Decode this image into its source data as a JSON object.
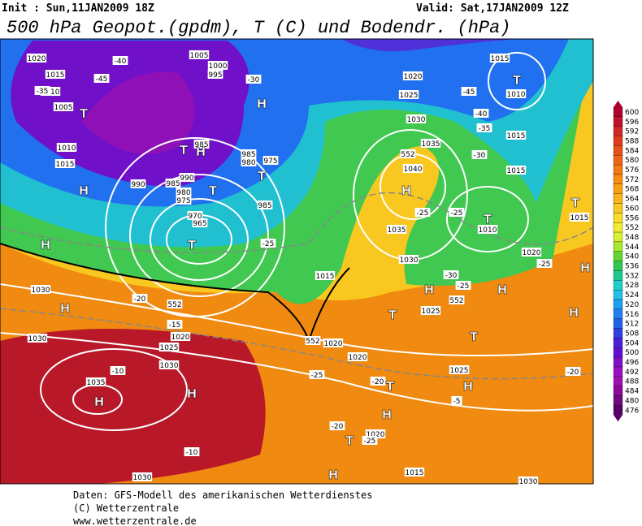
{
  "header": {
    "init": "Init : Sun,11JAN2009 18Z",
    "valid": "Valid: Sat,17JAN2009 12Z",
    "title": "500 hPa Geopot.(gpdm), T (C) und Bodendr. (hPa)"
  },
  "scale": {
    "values": [
      600,
      596,
      592,
      588,
      584,
      580,
      576,
      572,
      568,
      564,
      560,
      556,
      552,
      548,
      544,
      540,
      536,
      532,
      528,
      524,
      520,
      516,
      512,
      508,
      504,
      500,
      496,
      492,
      488,
      484,
      480,
      476
    ],
    "colors": [
      "#b00030",
      "#c0102c",
      "#d02828",
      "#e03c1c",
      "#e85018",
      "#ee6414",
      "#f27810",
      "#f68c10",
      "#f8a010",
      "#f8b418",
      "#f8c820",
      "#f8dc28",
      "#f0ec30",
      "#d8f030",
      "#a8e830",
      "#60d830",
      "#30c850",
      "#20c890",
      "#20d0c8",
      "#20c0e8",
      "#20a0f0",
      "#2080f0",
      "#2060e8",
      "#3040e0",
      "#4820d8",
      "#6010d0",
      "#8010c8",
      "#9810c0",
      "#a010b0",
      "#8c0898",
      "#700880",
      "#580068"
    ]
  },
  "map": {
    "labels": [
      "1020",
      "1015",
      "1010",
      "1005",
      "1010",
      "1015",
      "1005",
      "1000",
      "995",
      "985",
      "985",
      "980",
      "975",
      "990",
      "985",
      "990",
      "980",
      "975",
      "970",
      "965",
      "985",
      "1030",
      "1035",
      "1040",
      "1035",
      "1030",
      "1015",
      "1025",
      "1020",
      "1020",
      "1025",
      "1020",
      "1015",
      "1030",
      "1030",
      "1030",
      "1025",
      "1020",
      "1030",
      "1035",
      "1030",
      "1025",
      "1020",
      "1015",
      "1010",
      "1015",
      "1015",
      "1010",
      "1020",
      "1015",
      "-40",
      "-45",
      "-35",
      "-30",
      "-25",
      "-20",
      "-15",
      "-10",
      "-10",
      "-25",
      "-20",
      "-20",
      "-25",
      "-5",
      "-20",
      "-25",
      "-30",
      "-35",
      "-40",
      "-45",
      "-25",
      "-25",
      "-30",
      "-25",
      "H",
      "H",
      "H",
      "H",
      "H",
      "H",
      "H",
      "H",
      "H",
      "H",
      "H",
      "H",
      "H",
      "H",
      "H",
      "T",
      "T",
      "T",
      "T",
      "T",
      "T",
      "T",
      "T",
      "T",
      "T",
      "T",
      "T",
      "552",
      "552",
      "552",
      "552"
    ]
  },
  "footer": {
    "lines": [
      "Daten: GFS-Modell des amerikanischen Wetterdienstes",
      "(C) Wetterzentrale",
      "www.wetterzentrale.de"
    ]
  }
}
